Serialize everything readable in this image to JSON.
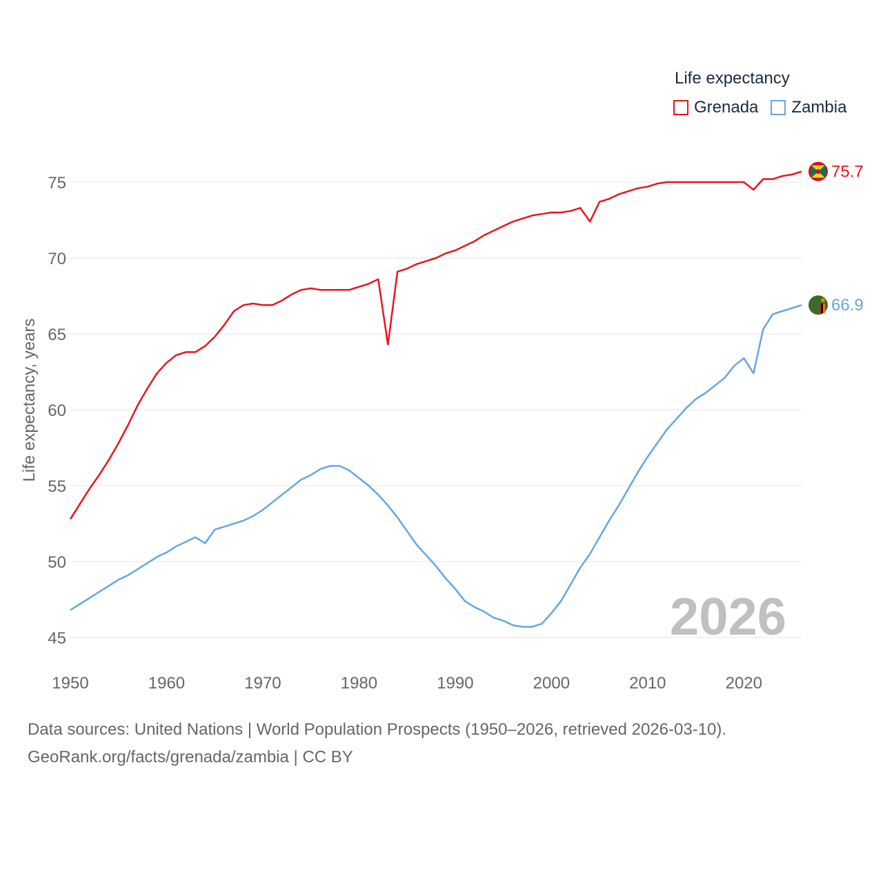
{
  "colors": {
    "grenada": "#e8141b",
    "zambia": "#62a6e4",
    "grid": "#e6e6e6",
    "axis_text": "#666666",
    "year_watermark": "#c0c0c0"
  },
  "legend": {
    "title": "Life expectancy",
    "items": [
      {
        "label": "Grenada",
        "color": "#e8141b"
      },
      {
        "label": "Zambia",
        "color": "#62a6e4"
      }
    ]
  },
  "footer": {
    "line1": "Data sources: United Nations | World Population Prospects (1950–2026, retrieved 2026-03-10).",
    "line2": "GeoRank.org/facts/grenada/zambia | CC BY"
  },
  "chart_data": {
    "type": "line",
    "title": "Life expectancy",
    "xlabel": "",
    "ylabel": "Life expectancy, years",
    "xlim": [
      1950,
      2026
    ],
    "ylim": [
      45,
      76.5
    ],
    "x_ticks": [
      1950,
      1960,
      1970,
      1980,
      1990,
      2000,
      2010,
      2020
    ],
    "y_ticks": [
      45,
      50,
      55,
      60,
      65,
      70,
      75
    ],
    "year_label": "2026",
    "x": [
      1950,
      1951,
      1952,
      1953,
      1954,
      1955,
      1956,
      1957,
      1958,
      1959,
      1960,
      1961,
      1962,
      1963,
      1964,
      1965,
      1966,
      1967,
      1968,
      1969,
      1970,
      1971,
      1972,
      1973,
      1974,
      1975,
      1976,
      1977,
      1978,
      1979,
      1980,
      1981,
      1982,
      1983,
      1984,
      1985,
      1986,
      1987,
      1988,
      1989,
      1990,
      1991,
      1992,
      1993,
      1994,
      1995,
      1996,
      1997,
      1998,
      1999,
      2000,
      2001,
      2002,
      2003,
      2004,
      2005,
      2006,
      2007,
      2008,
      2009,
      2010,
      2011,
      2012,
      2013,
      2014,
      2015,
      2016,
      2017,
      2018,
      2019,
      2020,
      2021,
      2022,
      2023,
      2024,
      2025,
      2026
    ],
    "series": [
      {
        "name": "Grenada",
        "color": "#e8141b",
        "end_label": "75.7",
        "values": [
          52.8,
          53.8,
          54.8,
          55.7,
          56.7,
          57.8,
          59.0,
          60.3,
          61.4,
          62.4,
          63.1,
          63.6,
          63.8,
          63.8,
          64.2,
          64.8,
          65.6,
          66.5,
          66.9,
          67.0,
          66.9,
          66.9,
          67.2,
          67.6,
          67.9,
          68.0,
          67.9,
          67.9,
          67.9,
          67.9,
          68.1,
          68.3,
          68.6,
          64.3,
          69.1,
          69.3,
          69.6,
          69.8,
          70.0,
          70.3,
          70.5,
          70.8,
          71.1,
          71.5,
          71.8,
          72.1,
          72.4,
          72.6,
          72.8,
          72.9,
          73.0,
          73.0,
          73.1,
          73.3,
          72.4,
          73.7,
          73.9,
          74.2,
          74.4,
          74.6,
          74.7,
          74.9,
          75.0,
          75.0,
          75.0,
          75.0,
          75.0,
          75.0,
          75.0,
          75.0,
          75.0,
          74.5,
          75.2,
          75.2,
          75.4,
          75.5,
          75.7
        ]
      },
      {
        "name": "Zambia",
        "color": "#62a6e4",
        "end_label": "66.9",
        "values": [
          46.8,
          47.2,
          47.6,
          48.0,
          48.4,
          48.8,
          49.1,
          49.5,
          49.9,
          50.3,
          50.6,
          51.0,
          51.3,
          51.6,
          51.2,
          52.1,
          52.3,
          52.5,
          52.7,
          53.0,
          53.4,
          53.9,
          54.4,
          54.9,
          55.4,
          55.7,
          56.1,
          56.3,
          56.3,
          56.0,
          55.5,
          55.0,
          54.4,
          53.7,
          52.9,
          52.0,
          51.1,
          50.4,
          49.7,
          48.9,
          48.2,
          47.4,
          47.0,
          46.7,
          46.3,
          46.1,
          45.8,
          45.7,
          45.7,
          45.9,
          46.6,
          47.4,
          48.5,
          49.6,
          50.5,
          51.6,
          52.7,
          53.7,
          54.8,
          55.9,
          56.9,
          57.8,
          58.7,
          59.4,
          60.1,
          60.7,
          61.1,
          61.6,
          62.1,
          62.9,
          63.4,
          62.4,
          65.3,
          66.3,
          66.5,
          66.7,
          66.9
        ]
      }
    ]
  }
}
